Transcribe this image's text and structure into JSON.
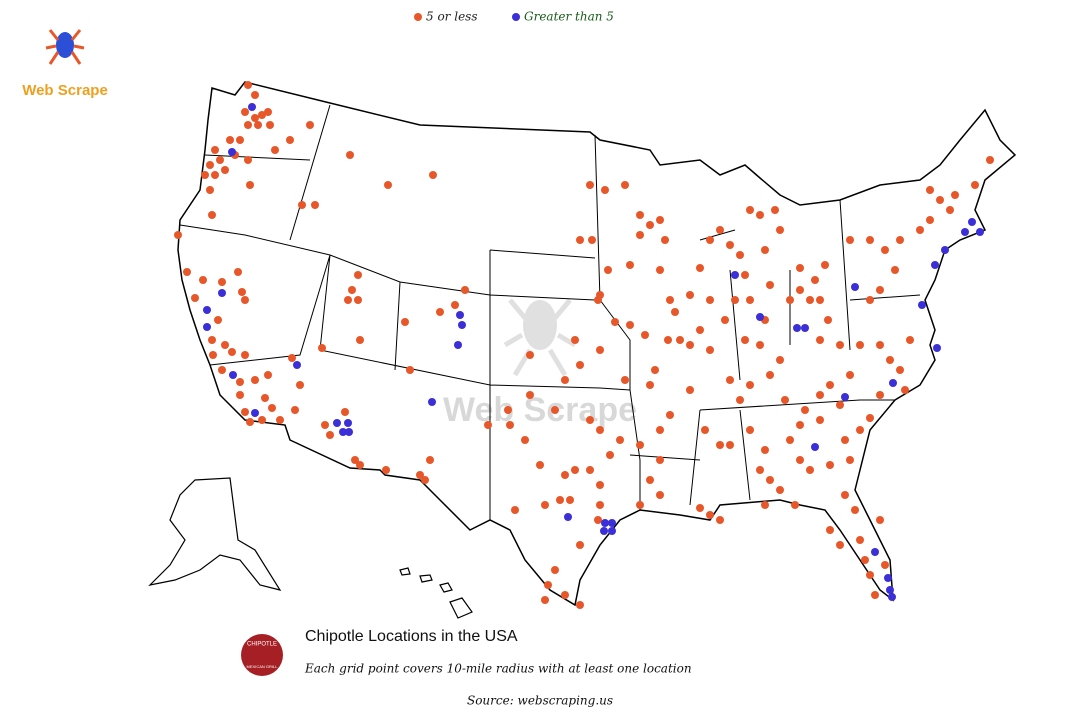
{
  "logo": {
    "text": "Web Scrape"
  },
  "legend": {
    "items": [
      {
        "label": "5 or less",
        "color": "#e8572a"
      },
      {
        "label": "Greater than 5",
        "color": "#3b2fd8"
      }
    ]
  },
  "watermark": "Web Scrape",
  "brand": {
    "name": "CHIPOTLE",
    "tagline": "MEXICAN GRILL"
  },
  "title": "Chipotle Locations in the USA",
  "subtitle": "Each grid point covers 10-mile radius with at least one location",
  "source": "Source: webscraping.us"
}
